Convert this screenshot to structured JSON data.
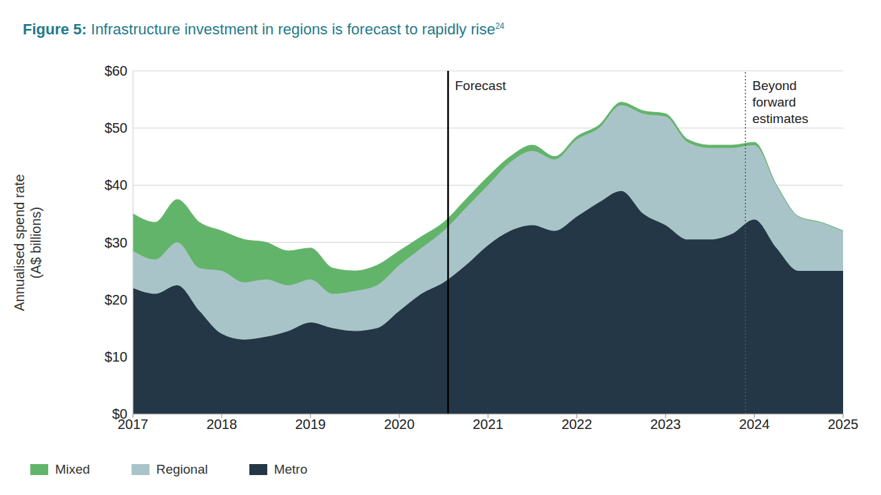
{
  "chart_data": {
    "type": "area",
    "stacked": true,
    "title": "Figure 5: Infrastructure investment in regions is forecast to rapidly rise",
    "title_footnote": "24",
    "y_label": "Annualised spend rate (A$ billions)",
    "x": [
      2017,
      2017.25,
      2017.5,
      2017.75,
      2018,
      2018.25,
      2018.5,
      2018.75,
      2019,
      2019.25,
      2019.5,
      2019.75,
      2020,
      2020.25,
      2020.5,
      2020.75,
      2021,
      2021.25,
      2021.5,
      2021.75,
      2022,
      2022.25,
      2022.5,
      2022.75,
      2023,
      2023.25,
      2023.5,
      2023.75,
      2024,
      2024.25,
      2024.5,
      2024.75,
      2025
    ],
    "series": [
      {
        "name": "Mixed",
        "color": "#62b46a",
        "values": [
          6.5,
          6.5,
          7.5,
          8,
          7,
          7.5,
          6.5,
          6,
          5.5,
          4.5,
          3.5,
          3.5,
          2.5,
          2,
          1.5,
          1.5,
          1.5,
          1,
          1,
          0.5,
          0.5,
          0.5,
          0.5,
          0.5,
          0.5,
          0.5,
          0.5,
          0.5,
          0.5,
          0,
          0,
          0,
          0
        ]
      },
      {
        "name": "Regional",
        "color": "#a9c4c8",
        "values": [
          6.5,
          6,
          7.5,
          7.5,
          11,
          10,
          10,
          8,
          7.5,
          6,
          7,
          7.5,
          8,
          8,
          9,
          10,
          10.5,
          12,
          13,
          12.5,
          13.5,
          13,
          15,
          17.5,
          19,
          17,
          16,
          15,
          13,
          11,
          9.5,
          8.5,
          7
        ]
      },
      {
        "name": "Metro",
        "color": "#243746",
        "values": [
          22,
          21,
          22.5,
          18,
          14,
          13,
          13.5,
          14.5,
          16,
          15,
          14.5,
          15,
          18,
          21,
          23,
          26,
          29.5,
          32,
          33,
          32,
          34.5,
          37,
          39,
          35,
          33,
          30.5,
          30.5,
          31.5,
          34,
          29,
          25,
          25,
          25
        ]
      }
    ],
    "xlim": [
      2017,
      2025
    ],
    "xticks": [
      2017,
      2018,
      2019,
      2020,
      2021,
      2022,
      2023,
      2024,
      2025
    ],
    "ylim": [
      0,
      60
    ],
    "yticks": [
      {
        "value": 0,
        "label": "$0"
      },
      {
        "value": 10,
        "label": "$10"
      },
      {
        "value": 20,
        "label": "$20"
      },
      {
        "value": 30,
        "label": "$30"
      },
      {
        "value": 40,
        "label": "$40"
      },
      {
        "value": 50,
        "label": "$50"
      },
      {
        "value": 60,
        "label": "$60"
      }
    ],
    "grid": true,
    "annotations": [
      {
        "x": 2020.55,
        "text": "Forecast",
        "line_style": "solid"
      },
      {
        "x": 2023.9,
        "text": "Beyond forward estimates",
        "line_style": "dotted"
      }
    ],
    "legend": "bottom left"
  }
}
